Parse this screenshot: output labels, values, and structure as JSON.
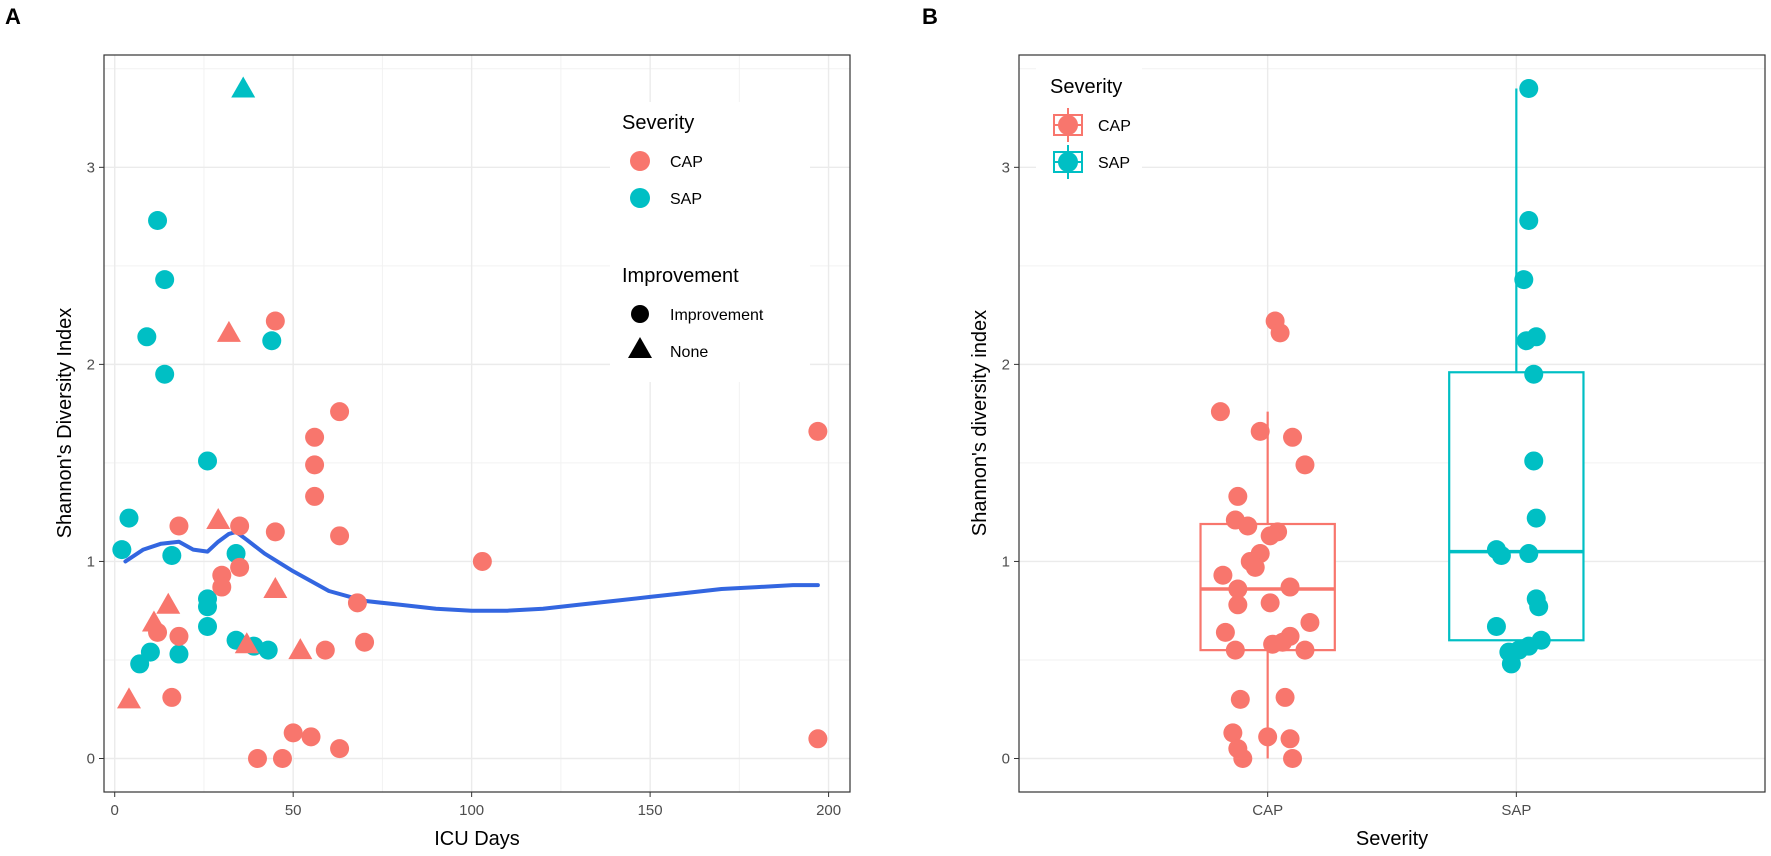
{
  "chart_data": [
    {
      "panel": "A",
      "type": "scatter",
      "xlabel": "ICU Days",
      "ylabel": "Shannon's Diversity Index",
      "xlim": [
        -3,
        206
      ],
      "ylim": [
        -0.17,
        3.57
      ],
      "xticks": [
        0,
        50,
        100,
        150,
        200
      ],
      "yticks": [
        0,
        1,
        2,
        3
      ],
      "grid": true,
      "colors": {
        "CAP": "#F8766D",
        "SAP": "#00BFC4",
        "smooth": "#3366E0"
      },
      "legend": {
        "severity_title": "Severity",
        "severity_items": [
          "CAP",
          "SAP"
        ],
        "improvement_title": "Improvement",
        "improvement_items": [
          "Improvement",
          "None"
        ],
        "position": "top-right"
      },
      "points": [
        {
          "x": 2,
          "y": 1.06,
          "sev": "SAP",
          "imp": "Improvement"
        },
        {
          "x": 4,
          "y": 1.22,
          "sev": "SAP",
          "imp": "Improvement"
        },
        {
          "x": 7,
          "y": 0.48,
          "sev": "SAP",
          "imp": "Improvement"
        },
        {
          "x": 9,
          "y": 2.14,
          "sev": "SAP",
          "imp": "Improvement"
        },
        {
          "x": 10,
          "y": 0.54,
          "sev": "SAP",
          "imp": "Improvement"
        },
        {
          "x": 12,
          "y": 2.73,
          "sev": "SAP",
          "imp": "Improvement"
        },
        {
          "x": 14,
          "y": 2.43,
          "sev": "SAP",
          "imp": "Improvement"
        },
        {
          "x": 14,
          "y": 1.95,
          "sev": "SAP",
          "imp": "Improvement"
        },
        {
          "x": 16,
          "y": 1.03,
          "sev": "SAP",
          "imp": "Improvement"
        },
        {
          "x": 18,
          "y": 0.53,
          "sev": "SAP",
          "imp": "Improvement"
        },
        {
          "x": 26,
          "y": 1.51,
          "sev": "SAP",
          "imp": "Improvement"
        },
        {
          "x": 26,
          "y": 0.81,
          "sev": "SAP",
          "imp": "Improvement"
        },
        {
          "x": 26,
          "y": 0.77,
          "sev": "SAP",
          "imp": "Improvement"
        },
        {
          "x": 26,
          "y": 0.67,
          "sev": "SAP",
          "imp": "Improvement"
        },
        {
          "x": 34,
          "y": 1.04,
          "sev": "SAP",
          "imp": "Improvement"
        },
        {
          "x": 34,
          "y": 0.6,
          "sev": "SAP",
          "imp": "Improvement"
        },
        {
          "x": 39,
          "y": 0.57,
          "sev": "SAP",
          "imp": "Improvement"
        },
        {
          "x": 43,
          "y": 0.55,
          "sev": "SAP",
          "imp": "Improvement"
        },
        {
          "x": 44,
          "y": 2.12,
          "sev": "SAP",
          "imp": "Improvement"
        },
        {
          "x": 36,
          "y": 3.4,
          "sev": "SAP",
          "imp": "None"
        },
        {
          "x": 12,
          "y": 0.64,
          "sev": "CAP",
          "imp": "Improvement"
        },
        {
          "x": 16,
          "y": 0.31,
          "sev": "CAP",
          "imp": "Improvement"
        },
        {
          "x": 18,
          "y": 1.18,
          "sev": "CAP",
          "imp": "Improvement"
        },
        {
          "x": 18,
          "y": 0.62,
          "sev": "CAP",
          "imp": "Improvement"
        },
        {
          "x": 30,
          "y": 0.93,
          "sev": "CAP",
          "imp": "Improvement"
        },
        {
          "x": 30,
          "y": 0.87,
          "sev": "CAP",
          "imp": "Improvement"
        },
        {
          "x": 35,
          "y": 1.18,
          "sev": "CAP",
          "imp": "Improvement"
        },
        {
          "x": 35,
          "y": 0.97,
          "sev": "CAP",
          "imp": "Improvement"
        },
        {
          "x": 40,
          "y": 0.0,
          "sev": "CAP",
          "imp": "Improvement"
        },
        {
          "x": 45,
          "y": 2.22,
          "sev": "CAP",
          "imp": "Improvement"
        },
        {
          "x": 45,
          "y": 1.15,
          "sev": "CAP",
          "imp": "Improvement"
        },
        {
          "x": 47,
          "y": 0.0,
          "sev": "CAP",
          "imp": "Improvement"
        },
        {
          "x": 50,
          "y": 0.13,
          "sev": "CAP",
          "imp": "Improvement"
        },
        {
          "x": 55,
          "y": 0.11,
          "sev": "CAP",
          "imp": "Improvement"
        },
        {
          "x": 56,
          "y": 1.63,
          "sev": "CAP",
          "imp": "Improvement"
        },
        {
          "x": 56,
          "y": 1.49,
          "sev": "CAP",
          "imp": "Improvement"
        },
        {
          "x": 56,
          "y": 1.33,
          "sev": "CAP",
          "imp": "Improvement"
        },
        {
          "x": 59,
          "y": 0.55,
          "sev": "CAP",
          "imp": "Improvement"
        },
        {
          "x": 63,
          "y": 1.76,
          "sev": "CAP",
          "imp": "Improvement"
        },
        {
          "x": 63,
          "y": 1.13,
          "sev": "CAP",
          "imp": "Improvement"
        },
        {
          "x": 63,
          "y": 0.05,
          "sev": "CAP",
          "imp": "Improvement"
        },
        {
          "x": 68,
          "y": 0.79,
          "sev": "CAP",
          "imp": "Improvement"
        },
        {
          "x": 70,
          "y": 0.59,
          "sev": "CAP",
          "imp": "Improvement"
        },
        {
          "x": 103,
          "y": 1.0,
          "sev": "CAP",
          "imp": "Improvement"
        },
        {
          "x": 197,
          "y": 1.66,
          "sev": "CAP",
          "imp": "Improvement"
        },
        {
          "x": 197,
          "y": 0.1,
          "sev": "CAP",
          "imp": "Improvement"
        },
        {
          "x": 4,
          "y": 0.3,
          "sev": "CAP",
          "imp": "None"
        },
        {
          "x": 11,
          "y": 0.69,
          "sev": "CAP",
          "imp": "None"
        },
        {
          "x": 15,
          "y": 0.78,
          "sev": "CAP",
          "imp": "None"
        },
        {
          "x": 29,
          "y": 1.21,
          "sev": "CAP",
          "imp": "None"
        },
        {
          "x": 32,
          "y": 2.16,
          "sev": "CAP",
          "imp": "None"
        },
        {
          "x": 37,
          "y": 0.58,
          "sev": "CAP",
          "imp": "None"
        },
        {
          "x": 45,
          "y": 0.86,
          "sev": "CAP",
          "imp": "None"
        },
        {
          "x": 52,
          "y": 0.55,
          "sev": "CAP",
          "imp": "None"
        }
      ],
      "smooth": {
        "x": [
          3,
          8,
          13,
          18,
          22,
          26,
          29,
          32,
          34,
          37,
          42,
          50,
          60,
          70,
          80,
          90,
          100,
          110,
          120,
          130,
          140,
          150,
          160,
          170,
          180,
          190,
          197
        ],
        "y": [
          1.0,
          1.06,
          1.09,
          1.1,
          1.06,
          1.05,
          1.1,
          1.14,
          1.15,
          1.11,
          1.04,
          0.95,
          0.85,
          0.8,
          0.78,
          0.76,
          0.75,
          0.75,
          0.76,
          0.78,
          0.8,
          0.82,
          0.84,
          0.86,
          0.87,
          0.88,
          0.88
        ]
      }
    },
    {
      "panel": "B",
      "type": "box",
      "xlabel": "Severity",
      "ylabel": "Shannon's diversity index",
      "categories": [
        "CAP",
        "SAP"
      ],
      "ylim": [
        -0.17,
        3.57
      ],
      "yticks": [
        0,
        1,
        2,
        3
      ],
      "grid": true,
      "colors": {
        "CAP": "#F8766D",
        "SAP": "#00BFC4"
      },
      "legend": {
        "title": "Severity",
        "items": [
          "CAP",
          "SAP"
        ],
        "position": "top-left"
      },
      "boxes": [
        {
          "category": "CAP",
          "q1": 0.55,
          "median": 0.86,
          "q3": 1.19,
          "whisker_low": 0.0,
          "whisker_high": 1.76
        },
        {
          "category": "SAP",
          "q1": 0.6,
          "median": 1.05,
          "q3": 1.96,
          "whisker_low": 0.48,
          "whisker_high": 3.4
        }
      ],
      "points": [
        {
          "category": "CAP",
          "y": 2.22,
          "jitter": 0.03
        },
        {
          "category": "CAP",
          "y": 2.16,
          "jitter": 0.05
        },
        {
          "category": "CAP",
          "y": 1.76,
          "jitter": -0.19
        },
        {
          "category": "CAP",
          "y": 1.66,
          "jitter": -0.03
        },
        {
          "category": "CAP",
          "y": 1.63,
          "jitter": 0.1
        },
        {
          "category": "CAP",
          "y": 1.49,
          "jitter": 0.15
        },
        {
          "category": "CAP",
          "y": 1.33,
          "jitter": -0.12
        },
        {
          "category": "CAP",
          "y": 1.21,
          "jitter": -0.13
        },
        {
          "category": "CAP",
          "y": 1.18,
          "jitter": -0.08
        },
        {
          "category": "CAP",
          "y": 1.15,
          "jitter": 0.04
        },
        {
          "category": "CAP",
          "y": 1.13,
          "jitter": 0.01
        },
        {
          "category": "CAP",
          "y": 1.04,
          "jitter": -0.03
        },
        {
          "category": "CAP",
          "y": 1.0,
          "jitter": -0.07
        },
        {
          "category": "CAP",
          "y": 0.97,
          "jitter": -0.05
        },
        {
          "category": "CAP",
          "y": 0.93,
          "jitter": -0.18
        },
        {
          "category": "CAP",
          "y": 0.87,
          "jitter": 0.09
        },
        {
          "category": "CAP",
          "y": 0.86,
          "jitter": -0.12
        },
        {
          "category": "CAP",
          "y": 0.79,
          "jitter": 0.01
        },
        {
          "category": "CAP",
          "y": 0.78,
          "jitter": -0.12
        },
        {
          "category": "CAP",
          "y": 0.69,
          "jitter": 0.17
        },
        {
          "category": "CAP",
          "y": 0.64,
          "jitter": -0.17
        },
        {
          "category": "CAP",
          "y": 0.62,
          "jitter": 0.09
        },
        {
          "category": "CAP",
          "y": 0.59,
          "jitter": 0.06
        },
        {
          "category": "CAP",
          "y": 0.58,
          "jitter": 0.02
        },
        {
          "category": "CAP",
          "y": 0.55,
          "jitter": -0.13
        },
        {
          "category": "CAP",
          "y": 0.55,
          "jitter": 0.15
        },
        {
          "category": "CAP",
          "y": 0.31,
          "jitter": 0.07
        },
        {
          "category": "CAP",
          "y": 0.3,
          "jitter": -0.11
        },
        {
          "category": "CAP",
          "y": 0.13,
          "jitter": -0.14
        },
        {
          "category": "CAP",
          "y": 0.11,
          "jitter": 0.0
        },
        {
          "category": "CAP",
          "y": 0.1,
          "jitter": 0.09
        },
        {
          "category": "CAP",
          "y": 0.05,
          "jitter": -0.12
        },
        {
          "category": "CAP",
          "y": 0.0,
          "jitter": -0.1
        },
        {
          "category": "CAP",
          "y": 0.0,
          "jitter": 0.1
        },
        {
          "category": "SAP",
          "y": 3.4,
          "jitter": 0.05
        },
        {
          "category": "SAP",
          "y": 2.73,
          "jitter": 0.05
        },
        {
          "category": "SAP",
          "y": 2.43,
          "jitter": 0.03
        },
        {
          "category": "SAP",
          "y": 2.14,
          "jitter": 0.08
        },
        {
          "category": "SAP",
          "y": 2.12,
          "jitter": 0.04
        },
        {
          "category": "SAP",
          "y": 1.95,
          "jitter": 0.07
        },
        {
          "category": "SAP",
          "y": 1.51,
          "jitter": 0.07
        },
        {
          "category": "SAP",
          "y": 1.22,
          "jitter": 0.08
        },
        {
          "category": "SAP",
          "y": 1.06,
          "jitter": -0.08
        },
        {
          "category": "SAP",
          "y": 1.04,
          "jitter": 0.05
        },
        {
          "category": "SAP",
          "y": 1.03,
          "jitter": -0.06
        },
        {
          "category": "SAP",
          "y": 0.81,
          "jitter": 0.08
        },
        {
          "category": "SAP",
          "y": 0.77,
          "jitter": 0.09
        },
        {
          "category": "SAP",
          "y": 0.67,
          "jitter": -0.08
        },
        {
          "category": "SAP",
          "y": 0.6,
          "jitter": 0.1
        },
        {
          "category": "SAP",
          "y": 0.57,
          "jitter": 0.05
        },
        {
          "category": "SAP",
          "y": 0.55,
          "jitter": 0.01
        },
        {
          "category": "SAP",
          "y": 0.54,
          "jitter": -0.03
        },
        {
          "category": "SAP",
          "y": 0.53,
          "jitter": -0.02
        },
        {
          "category": "SAP",
          "y": 0.48,
          "jitter": -0.02
        }
      ]
    }
  ],
  "panels": {
    "a_label": "A",
    "b_label": "B"
  }
}
